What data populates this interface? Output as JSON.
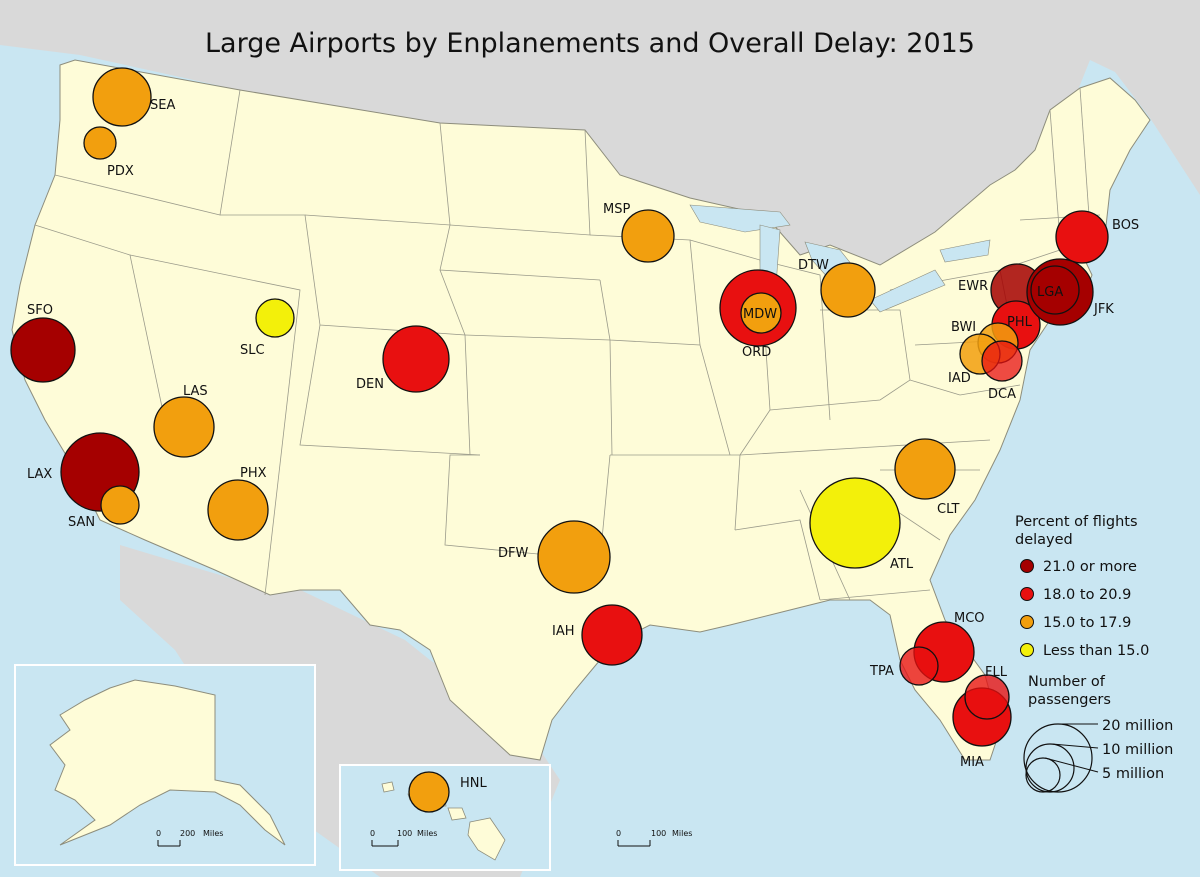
{
  "map": {
    "title": "Large Airports by Enplanements and Overall Delay: 2015"
  },
  "colors": {
    "water": "#c9e6f2",
    "land": "#fefcd8",
    "neighbor_land": "#d9d9d9",
    "border": "#9a9a8a",
    "c21_plus": "#a50000",
    "c18_209": "#e81010",
    "c15_179": "#f29f0e",
    "c_lt15": "#f3f00a"
  },
  "airports": [
    {
      "code": "SEA",
      "category": "c15_179",
      "size": "medium-large"
    },
    {
      "code": "PDX",
      "category": "c15_179",
      "size": "small"
    },
    {
      "code": "SFO",
      "category": "c21_plus",
      "size": "medium-large"
    },
    {
      "code": "LAX",
      "category": "c21_plus",
      "size": "largest"
    },
    {
      "code": "SAN",
      "category": "c15_179",
      "size": "small"
    },
    {
      "code": "LAS",
      "category": "c15_179",
      "size": "medium-large"
    },
    {
      "code": "PHX",
      "category": "c15_179",
      "size": "medium-large"
    },
    {
      "code": "SLC",
      "category": "c_lt15",
      "size": "small"
    },
    {
      "code": "DEN",
      "category": "c18_209",
      "size": "large"
    },
    {
      "code": "MSP",
      "category": "c15_179",
      "size": "medium"
    },
    {
      "code": "DFW",
      "category": "c15_179",
      "size": "large"
    },
    {
      "code": "IAH",
      "category": "c18_209",
      "size": "medium-large"
    },
    {
      "code": "ORD",
      "category": "c18_209",
      "size": "large"
    },
    {
      "code": "MDW",
      "category": "c15_179",
      "size": "small"
    },
    {
      "code": "DTW",
      "category": "c15_179",
      "size": "medium"
    },
    {
      "code": "ATL",
      "category": "c_lt15",
      "size": "largest"
    },
    {
      "code": "CLT",
      "category": "c15_179",
      "size": "medium-large"
    },
    {
      "code": "MCO",
      "category": "c18_209",
      "size": "medium-large"
    },
    {
      "code": "TPA",
      "category": "c18_209",
      "size": "small"
    },
    {
      "code": "FLL",
      "category": "c18_209",
      "size": "small"
    },
    {
      "code": "MIA",
      "category": "c18_209",
      "size": "medium"
    },
    {
      "code": "BOS",
      "category": "c18_209",
      "size": "medium"
    },
    {
      "code": "EWR",
      "category": "c21_plus",
      "size": "medium"
    },
    {
      "code": "LGA",
      "category": "c21_plus",
      "size": "medium"
    },
    {
      "code": "JFK",
      "category": "c21_plus",
      "size": "large"
    },
    {
      "code": "PHL",
      "category": "c18_209",
      "size": "medium"
    },
    {
      "code": "BWI",
      "category": "c15_179",
      "size": "small"
    },
    {
      "code": "IAD",
      "category": "c15_179",
      "size": "small"
    },
    {
      "code": "DCA",
      "category": "c18_209",
      "size": "small"
    },
    {
      "code": "HNL",
      "category": "c15_179",
      "size": "small"
    }
  ],
  "legend": {
    "color_title_line1": "Percent of flights",
    "color_title_line2": "delayed",
    "items": [
      {
        "label": "21.0 or more",
        "key": "c21_plus"
      },
      {
        "label": "18.0 to 20.9",
        "key": "c18_209"
      },
      {
        "label": "15.0 to 17.9",
        "key": "c15_179"
      },
      {
        "label": "Less than 15.0",
        "key": "c_lt15"
      }
    ],
    "size_title_line1": "Number of",
    "size_title_line2": "passengers",
    "size_items": [
      "20 million",
      "10 million",
      "5 million"
    ]
  },
  "scale_bars": {
    "alaska": {
      "zero": "0",
      "dist": "200",
      "unit": "Miles"
    },
    "hawaii": {
      "zero": "0",
      "dist": "100",
      "unit": "Miles"
    },
    "mainland": {
      "zero": "0",
      "dist": "100",
      "unit": "Miles"
    }
  }
}
